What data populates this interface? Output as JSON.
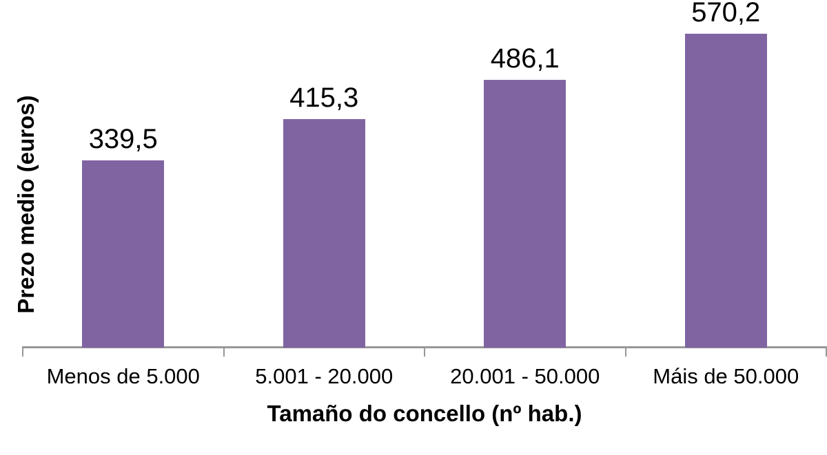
{
  "chart_data": {
    "type": "bar",
    "categories": [
      "Menos de 5.000",
      "5.001 - 20.000",
      "20.001 - 50.000",
      "Máis de 50.000"
    ],
    "values": [
      339.5,
      415.3,
      486.1,
      570.2
    ],
    "value_labels": [
      "339,5",
      "415,3",
      "486,1",
      "570,2"
    ],
    "title": "",
    "xlabel": "Tamaño do concello (nº hab.)",
    "ylabel": "Prezo medio (euros)",
    "ylim": [
      0,
      600
    ],
    "grid": false,
    "legend": false,
    "bar_color": "#8064A2",
    "axis_color": "#979797",
    "text_color": "#000000"
  }
}
